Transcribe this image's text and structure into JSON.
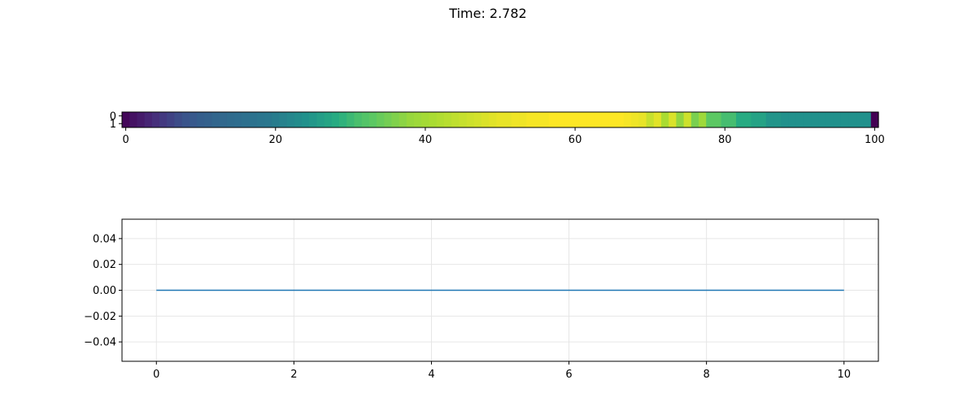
{
  "figure": {
    "title": "Time: 2.782"
  },
  "chart_data": [
    {
      "type": "heatmap",
      "colormap": "viridis",
      "rows": 2,
      "columns": 101,
      "x_ticks": [
        "0",
        "20",
        "40",
        "60",
        "80",
        "100"
      ],
      "y_ticks": [
        "0",
        "1"
      ],
      "xlim": [
        -0.5,
        100.5
      ],
      "values": [
        0.02,
        0.05,
        0.08,
        0.11,
        0.14,
        0.17,
        0.2,
        0.23,
        0.26,
        0.28,
        0.3,
        0.31,
        0.33,
        0.34,
        0.35,
        0.36,
        0.37,
        0.38,
        0.39,
        0.4,
        0.42,
        0.44,
        0.46,
        0.48,
        0.5,
        0.53,
        0.56,
        0.59,
        0.62,
        0.65,
        0.68,
        0.71,
        0.73,
        0.75,
        0.77,
        0.79,
        0.81,
        0.83,
        0.85,
        0.86,
        0.87,
        0.88,
        0.89,
        0.9,
        0.91,
        0.92,
        0.93,
        0.94,
        0.95,
        0.96,
        0.97,
        0.97,
        0.98,
        0.98,
        0.99,
        0.99,
        0.99,
        1.0,
        1.0,
        1.0,
        1.0,
        1.0,
        1.0,
        1.0,
        1.0,
        1.0,
        1.0,
        0.99,
        0.98,
        0.97,
        0.92,
        0.96,
        0.88,
        0.95,
        0.84,
        0.93,
        0.8,
        0.86,
        0.75,
        0.75,
        0.7,
        0.7,
        0.62,
        0.62,
        0.58,
        0.58,
        0.52,
        0.52,
        0.5,
        0.5,
        0.5,
        0.5,
        0.5,
        0.5,
        0.5,
        0.5,
        0.5,
        0.5,
        0.5,
        0.5,
        0.0
      ],
      "grid": false
    },
    {
      "type": "line",
      "series": [
        {
          "x": [
            0,
            10
          ],
          "y": [
            0.0,
            0.0
          ],
          "color": "#1f77b4"
        }
      ],
      "xlim": [
        -0.5,
        10.5
      ],
      "ylim": [
        -0.055,
        0.055
      ],
      "x_ticks": [
        "0",
        "2",
        "4",
        "6",
        "8",
        "10"
      ],
      "y_ticks": [
        "0.04",
        "0.02",
        "0.00",
        "−0.02",
        "−0.04"
      ],
      "grid": true
    }
  ]
}
